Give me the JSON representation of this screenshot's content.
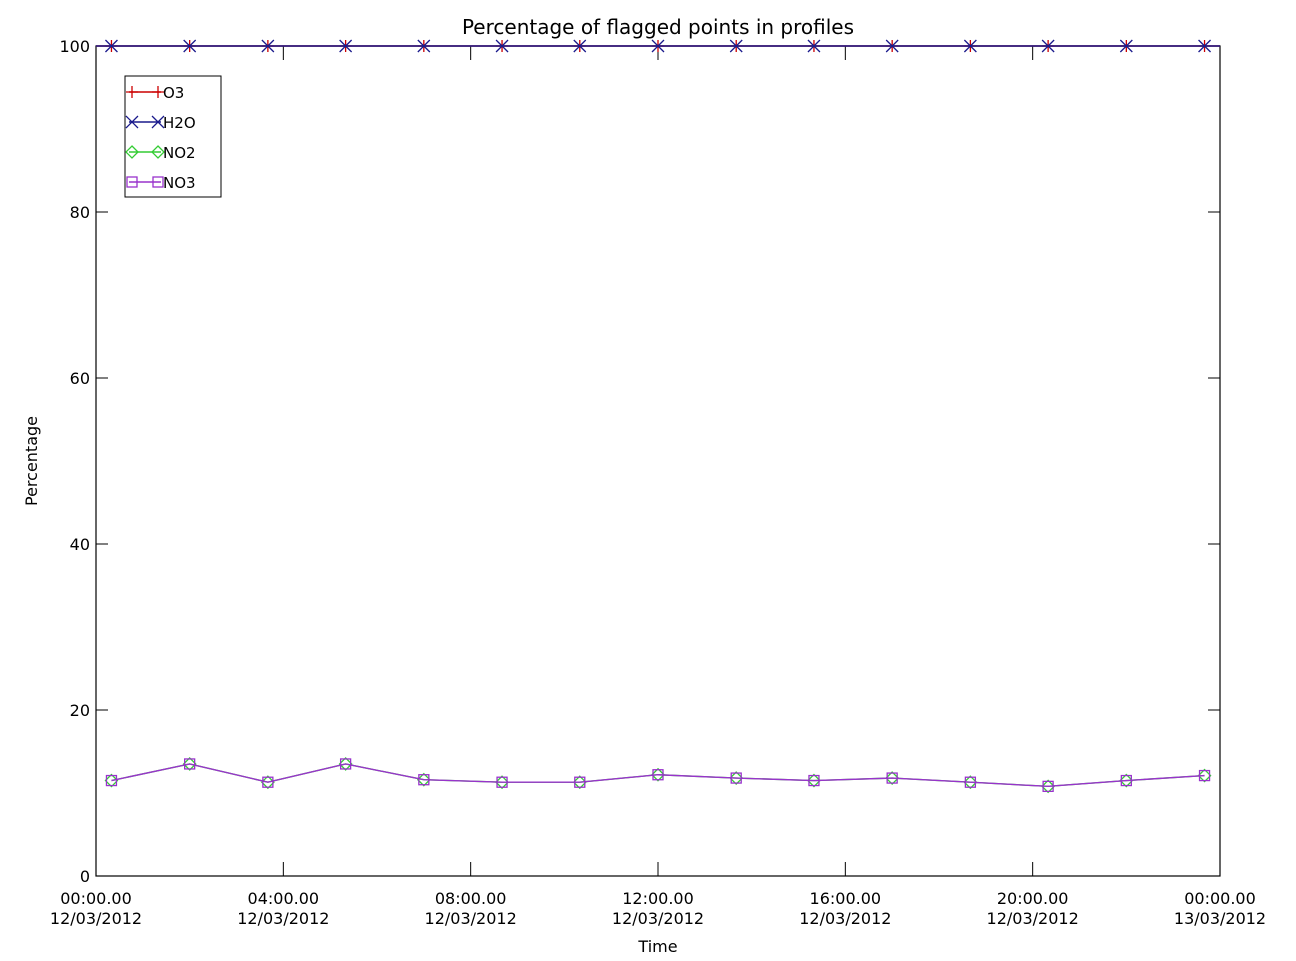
{
  "chart_data": {
    "type": "line",
    "title": "Percentage of flagged points in profiles",
    "xlabel": "Time",
    "ylabel": "Percentage",
    "ylim": [
      0,
      100
    ],
    "xlim_hours": [
      0,
      24
    ],
    "yticks": [
      0,
      20,
      40,
      60,
      80,
      100
    ],
    "xticks": [
      {
        "hour": 0,
        "time": "00:00.00",
        "date": "12/03/2012"
      },
      {
        "hour": 4,
        "time": "04:00.00",
        "date": "12/03/2012"
      },
      {
        "hour": 8,
        "time": "08:00.00",
        "date": "12/03/2012"
      },
      {
        "hour": 12,
        "time": "12:00.00",
        "date": "12/03/2012"
      },
      {
        "hour": 16,
        "time": "16:00.00",
        "date": "12/03/2012"
      },
      {
        "hour": 20,
        "time": "20:00.00",
        "date": "12/03/2012"
      },
      {
        "hour": 24,
        "time": "00:00.00",
        "date": "13/03/2012"
      }
    ],
    "x_hours": [
      0.33,
      2.0,
      3.67,
      5.33,
      7.0,
      8.67,
      10.33,
      12.0,
      13.67,
      15.33,
      17.0,
      18.67,
      20.33,
      22.0,
      23.67
    ],
    "legend_position": "top-left",
    "grid": false,
    "series": [
      {
        "name": "O3",
        "color": "#cc0000",
        "marker": "plus",
        "values": [
          100,
          100,
          100,
          100,
          100,
          100,
          100,
          100,
          100,
          100,
          100,
          100,
          100,
          100,
          100
        ]
      },
      {
        "name": "H2O",
        "color": "#1a1a8c",
        "marker": "x",
        "values": [
          100,
          100,
          100,
          100,
          100,
          100,
          100,
          100,
          100,
          100,
          100,
          100,
          100,
          100,
          100
        ]
      },
      {
        "name": "NO2",
        "color": "#33cc33",
        "marker": "diamond",
        "values": [
          11.5,
          13.5,
          11.3,
          13.5,
          11.6,
          11.3,
          11.3,
          12.2,
          11.8,
          11.5,
          11.8,
          11.3,
          10.8,
          11.5,
          12.1
        ]
      },
      {
        "name": "NO3",
        "color": "#9933cc",
        "marker": "square",
        "values": [
          11.5,
          13.5,
          11.3,
          13.5,
          11.6,
          11.3,
          11.3,
          12.2,
          11.8,
          11.5,
          11.8,
          11.3,
          10.8,
          11.5,
          12.1
        ]
      }
    ],
    "colors": {
      "axis": "#000000",
      "background": "#ffffff"
    }
  }
}
